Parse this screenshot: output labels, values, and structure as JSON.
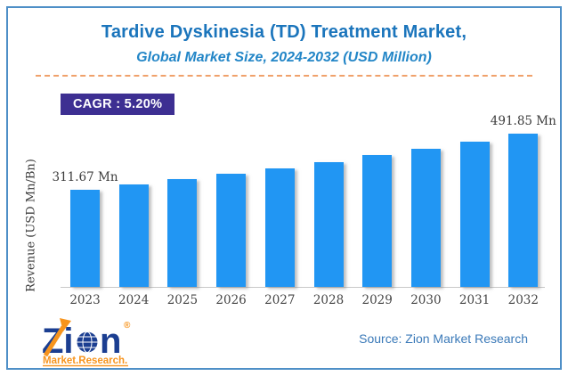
{
  "header": {
    "title": "Tardive Dyskinesia (TD) Treatment Market,",
    "subtitle": "Global Market Size, 2024-2032 (USD Million)"
  },
  "badge": {
    "label": "CAGR : 5.20%"
  },
  "chart_data": {
    "type": "bar",
    "title": "Tardive Dyskinesia (TD) Treatment Market, Global Market Size, 2024-2032 (USD Million)",
    "categories": [
      "2023",
      "2024",
      "2025",
      "2026",
      "2027",
      "2028",
      "2029",
      "2030",
      "2031",
      "2032"
    ],
    "values": [
      311.67,
      327.88,
      344.93,
      362.86,
      381.73,
      401.58,
      422.47,
      444.43,
      467.54,
      491.85
    ],
    "data_labels": [
      "311.67 Mn",
      null,
      null,
      null,
      null,
      null,
      null,
      null,
      null,
      "491.85 Mn"
    ],
    "xlabel": "",
    "ylabel": "Revenue (USD Mn/Bn)",
    "ylim": [
      0,
      500
    ],
    "grid": false,
    "legend": false,
    "cagr": "5.20%"
  },
  "footer": {
    "source": "Source: Zion Market Research",
    "logo": {
      "brand_left": "Zi",
      "brand_right": "n",
      "tagline": "Market.Research.",
      "registered": "®"
    }
  },
  "colors": {
    "title": "#1B75BC",
    "subtitle": "#2386C7",
    "dash": "#F0A16B",
    "badgebg": "#3D2F92",
    "badgetext": "#FFFFFF",
    "bar": "#2196F3",
    "labeltext": "#3B3B3B",
    "axistext": "#444444",
    "axisline": "#C9C9C9",
    "source": "#3A79B8",
    "border": "#4E8FC7",
    "logoblue": "#1B3E91",
    "logoorange": "#F7941D"
  }
}
